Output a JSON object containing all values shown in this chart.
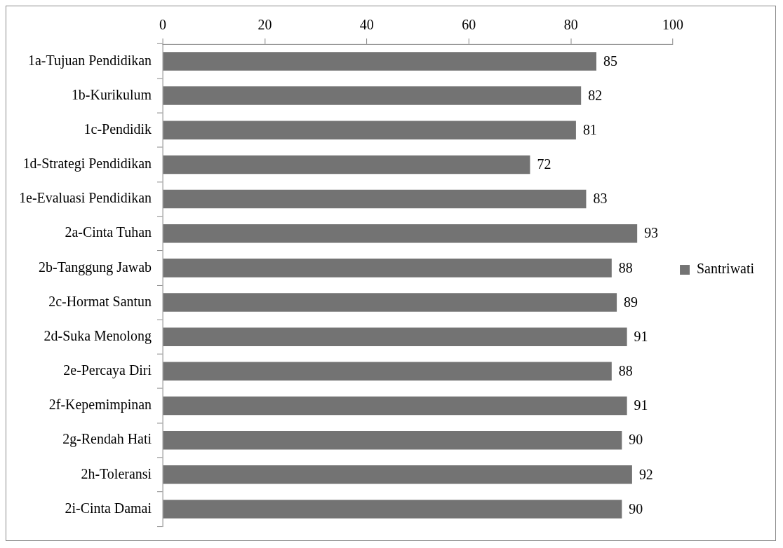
{
  "chart_data": {
    "type": "bar",
    "orientation": "horizontal",
    "categories": [
      "1a-Tujuan Pendidikan",
      "1b-Kurikulum",
      "1c-Pendidik",
      "1d-Strategi Pendidikan",
      "1e-Evaluasi Pendidikan",
      "2a-Cinta Tuhan",
      "2b-Tanggung Jawab",
      "2c-Hormat Santun",
      "2d-Suka Menolong",
      "2e-Percaya Diri",
      "2f-Kepemimpinan",
      "2g-Rendah Hati",
      "2h-Toleransi",
      "2i-Cinta Damai"
    ],
    "series": [
      {
        "name": "Santriwati",
        "color": "#737373",
        "values": [
          85,
          82,
          81,
          72,
          83,
          93,
          88,
          89,
          91,
          88,
          91,
          90,
          92,
          90
        ]
      }
    ],
    "xlim": [
      0,
      100
    ],
    "xticks": [
      0,
      20,
      40,
      60,
      80,
      100
    ],
    "grid": false,
    "legend": "right",
    "data_labels": true
  }
}
